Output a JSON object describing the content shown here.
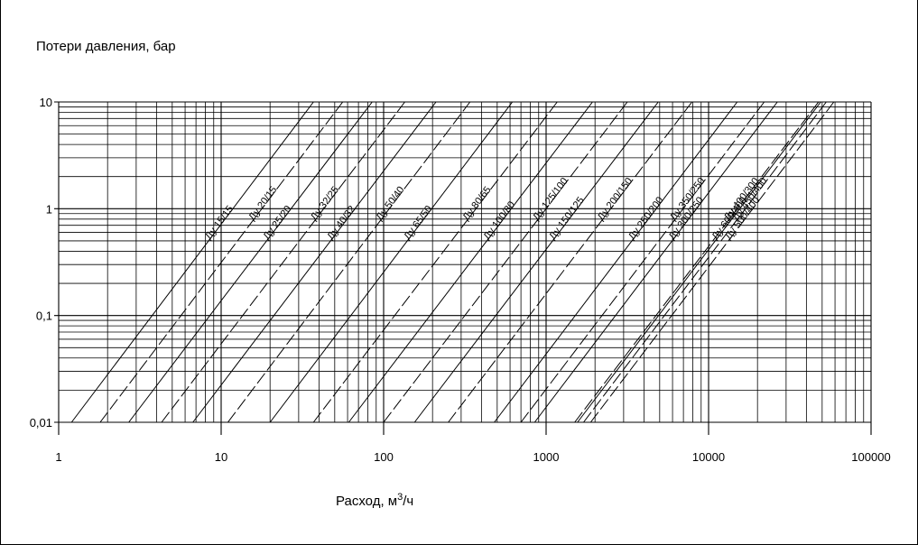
{
  "chart_data": {
    "type": "line",
    "ylabel": "Потери давления, бар",
    "xlabel_base": "Расход, м",
    "xlabel_sup": "3",
    "xlabel_tail": "/ч",
    "x_scale": "log",
    "y_scale": "log",
    "xlim": [
      1,
      100000
    ],
    "ylim": [
      0.01,
      10
    ],
    "grid": true,
    "x_ticks": [
      {
        "value": 1,
        "label": "1"
      },
      {
        "value": 10,
        "label": "10"
      },
      {
        "value": 100,
        "label": "100"
      },
      {
        "value": 1000,
        "label": "1000"
      },
      {
        "value": 10000,
        "label": "10000"
      },
      {
        "value": 100000,
        "label": "100000"
      }
    ],
    "y_ticks": [
      {
        "value": 10,
        "label": "10"
      },
      {
        "value": 1,
        "label": "1"
      },
      {
        "value": 0.1,
        "label": "0,1"
      },
      {
        "value": 0.01,
        "label": "0,01"
      }
    ],
    "series": [
      {
        "name": "Ду 15/15",
        "x": [
          1.2,
          37
        ],
        "y": [
          0.01,
          10
        ],
        "style": "solid"
      },
      {
        "name": "Ду 20/15",
        "x": [
          1.8,
          56
        ],
        "y": [
          0.01,
          10
        ],
        "style": "dashed"
      },
      {
        "name": "Ду 25/20",
        "x": [
          2.7,
          85
        ],
        "y": [
          0.01,
          10
        ],
        "style": "solid"
      },
      {
        "name": "Ду 32/25",
        "x": [
          4.3,
          135
        ],
        "y": [
          0.01,
          10
        ],
        "style": "dashed"
      },
      {
        "name": "Ду 40/32",
        "x": [
          6.7,
          210
        ],
        "y": [
          0.01,
          10
        ],
        "style": "solid"
      },
      {
        "name": "Ду 50/40",
        "x": [
          11,
          340
        ],
        "y": [
          0.01,
          10
        ],
        "style": "dashed"
      },
      {
        "name": "Ду 65/50",
        "x": [
          20,
          620
        ],
        "y": [
          0.01,
          10
        ],
        "style": "solid"
      },
      {
        "name": "Ду 80/65",
        "x": [
          37,
          1170
        ],
        "y": [
          0.01,
          10
        ],
        "style": "dashed"
      },
      {
        "name": "Ду 100/80",
        "x": [
          61,
          1930
        ],
        "y": [
          0.01,
          10
        ],
        "style": "solid"
      },
      {
        "name": "Ду 125/100",
        "x": [
          100,
          3160
        ],
        "y": [
          0.01,
          10
        ],
        "style": "dashed"
      },
      {
        "name": "Ду 150/125",
        "x": [
          155,
          4900
        ],
        "y": [
          0.01,
          10
        ],
        "style": "solid"
      },
      {
        "name": "Ду 200/150",
        "x": [
          250,
          7900
        ],
        "y": [
          0.01,
          10
        ],
        "style": "dashed"
      },
      {
        "name": "Ду 250/200",
        "x": [
          480,
          15000
        ],
        "y": [
          0.01,
          10
        ],
        "style": "solid"
      },
      {
        "name": "Ду 350/250",
        "x": [
          700,
          22000
        ],
        "y": [
          0.01,
          10
        ],
        "style": "dashed"
      },
      {
        "name": "Ду 300/250",
        "x": [
          850,
          26500
        ],
        "y": [
          0.01,
          10
        ],
        "style": "solid"
      },
      {
        "name": "Ду 400/300",
        "x": [
          1500,
          47500
        ],
        "y": [
          0.01,
          10
        ],
        "style": "dashed"
      },
      {
        "name": "Ду 600/400",
        "x": [
          1560,
          49000
        ],
        "y": [
          0.01,
          10
        ],
        "style": "solid"
      },
      {
        "name": "Ду 450/400",
        "x": [
          1700,
          53000
        ],
        "y": [
          0.01,
          10
        ],
        "style": "dashed"
      },
      {
        "name": "Ду 500/400",
        "x": [
          1880,
          59000
        ],
        "y": [
          0.01,
          10
        ],
        "style": "dashed"
      }
    ]
  }
}
